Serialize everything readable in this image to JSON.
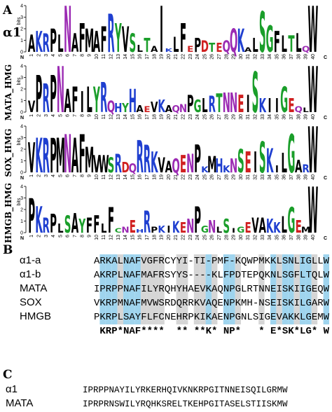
{
  "panels": {
    "A": "A",
    "B": "B",
    "C": "C"
  },
  "residue_colors": {
    "hydrophobic": "#000000",
    "polar": "#1a9e2a",
    "amide": "#9b2ab3",
    "basic": "#1f3fd0",
    "acidic": "#d02020"
  },
  "logo_axis": {
    "label": "bits",
    "ylim": [
      0,
      4
    ],
    "yticks": [
      0,
      1,
      2,
      3,
      4
    ],
    "positions": [
      1,
      2,
      3,
      4,
      5,
      6,
      7,
      8,
      9,
      10,
      11,
      12,
      13,
      14,
      15,
      16,
      17,
      18,
      19,
      20,
      21,
      22,
      23,
      24,
      25,
      26,
      27,
      28,
      29,
      30,
      31,
      32,
      33,
      34,
      35,
      36,
      37,
      38,
      39,
      40
    ],
    "n_label": "N",
    "c_label": "C"
  },
  "logos": [
    {
      "name": "α1",
      "letters": [
        "A",
        "K",
        "R",
        "P",
        "L",
        "N",
        "A",
        "F",
        "M",
        "A",
        "F",
        "R",
        "Y",
        "V",
        "S",
        "L",
        "T",
        "A",
        "I",
        "K",
        "L",
        "F",
        "E",
        "P",
        "D",
        "T",
        "E",
        "Q",
        "Q",
        "K",
        "A",
        "L",
        "S",
        "G",
        "F",
        "L",
        "T",
        "L",
        "Q",
        "W"
      ],
      "heights": [
        1.5,
        1.8,
        1.6,
        2,
        1.5,
        4,
        1.6,
        2.5,
        2,
        1.8,
        2.2,
        3.3,
        2.5,
        2.2,
        1.6,
        0.6,
        1.2,
        0.5,
        4,
        0.3,
        1.3,
        2.5,
        0.5,
        1.2,
        1,
        0.8,
        0.8,
        1,
        2,
        2,
        0.4,
        1.2,
        3.5,
        2.3,
        1.8,
        1.4,
        1.4,
        1.6,
        0.5,
        4
      ]
    },
    {
      "name": "MATA_HMG",
      "letters": [
        "V",
        "P",
        "R",
        "P",
        "N",
        "A",
        "F",
        "I",
        "L",
        "Y",
        "R",
        "Q",
        "H",
        "Y",
        "H",
        "A",
        "E",
        "V",
        "K",
        "A",
        "Q",
        "N",
        "P",
        "G",
        "L",
        "R",
        "T",
        "N",
        "N",
        "E",
        "I",
        "S",
        "K",
        "I",
        "I",
        "G",
        "E",
        "Q",
        "L",
        "W"
      ],
      "heights": [
        1,
        3.2,
        2.5,
        3.2,
        4,
        2,
        2.2,
        1.8,
        2.2,
        2.2,
        2.6,
        1,
        0.8,
        0.8,
        2,
        0.6,
        0.5,
        0.9,
        1.1,
        0.6,
        0.6,
        0.7,
        1.5,
        1.1,
        1.2,
        1.4,
        1.6,
        1.7,
        1.7,
        1.5,
        1.5,
        3.5,
        1.2,
        1.2,
        1.2,
        2.2,
        1.2,
        0.5,
        0.4,
        4
      ]
    },
    {
      "name": "SOX_HMG",
      "letters": [
        "V",
        "K",
        "R",
        "P",
        "M",
        "N",
        "A",
        "F",
        "M",
        "V",
        "W",
        "S",
        "R",
        "D",
        "Q",
        "R",
        "R",
        "K",
        "V",
        "A",
        "Q",
        "E",
        "N",
        "P",
        "K",
        "M",
        "H",
        "K",
        "N",
        "S",
        "E",
        "I",
        "S",
        "K",
        "I",
        "L",
        "G",
        "A",
        "R",
        "W"
      ],
      "heights": [
        2.6,
        3,
        3,
        3,
        3,
        3.3,
        3,
        3.3,
        2.2,
        1.5,
        1.5,
        1.3,
        1.6,
        0.9,
        0.8,
        2.8,
        2.4,
        1.8,
        1.3,
        1,
        1.2,
        1.5,
        1.6,
        2.4,
        0.5,
        1.4,
        1.2,
        0.6,
        1.2,
        2,
        1.8,
        1.8,
        2.7,
        2.1,
        0.6,
        1.7,
        3.3,
        1.1,
        0.7,
        4
      ]
    },
    {
      "name": "HMGB_HMG",
      "letters": [
        "P",
        "K",
        "R",
        "P",
        "L",
        "S",
        "A",
        "Y",
        "F",
        "F",
        "L",
        "F",
        "C",
        "N",
        "E",
        "H",
        "R",
        "P",
        "K",
        "I",
        "K",
        "E",
        "N",
        "P",
        "G",
        "N",
        "L",
        "S",
        "I",
        "G",
        "E",
        "V",
        "A",
        "K",
        "K",
        "L",
        "G",
        "E",
        "M",
        "W"
      ],
      "heights": [
        3,
        2.3,
        1.3,
        1.6,
        0.8,
        1.5,
        1.7,
        1.2,
        1.3,
        1.5,
        0.8,
        2.2,
        0.4,
        0.5,
        1.1,
        0.3,
        1.9,
        0.5,
        0.6,
        0.6,
        1,
        0.9,
        1.2,
        2.3,
        0.6,
        1.1,
        0.5,
        1.2,
        0.4,
        0.5,
        0.9,
        1.3,
        1.3,
        1.2,
        0.9,
        1.4,
        2.2,
        1.1,
        0.5,
        4
      ]
    }
  ],
  "alignment": {
    "rows": [
      {
        "name": "α1-a",
        "sequence": "ARKALNAFVGFRCYYI-TI-PMF-KQWPMKKLSNLIGLLW"
      },
      {
        "name": "α1-b",
        "sequence": "AKRPLNAFMAFRSYYS----KLFPDTEPQKNLSGFLTQLW"
      },
      {
        "name": "MATA",
        "sequence": "IPRPPNAFILYRQHYHAEVKAQNPGLRTNNEISKIIGEQW"
      },
      {
        "name": "SOX",
        "sequence": "VKRPMNAFMVWSRDQRRKVAQENPKMH-NSEISKILGARW"
      },
      {
        "name": "HMGB",
        "sequence": "PKRPLSAYFLFCNEHRPKIKAENPGNLSIGEVAKKLGEMW"
      }
    ],
    "consensus": " KRP*NAF****  ** **K* NP*   * E*SK*LG* W"
  },
  "comparison": {
    "rows": [
      {
        "name": "α1",
        "sequence": "IPRPPNAYILYRKERHQIVKNKRPGITNNEISQILGRMW"
      },
      {
        "name": "MATA",
        "sequence": "IPRPRNSWILYRQHKSRELTKEHPGITASELSTIISKMW"
      }
    ]
  }
}
